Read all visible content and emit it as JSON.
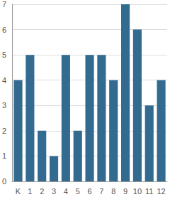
{
  "chart_data": {
    "type": "bar",
    "categories": [
      "K",
      "1",
      "2",
      "3",
      "4",
      "5",
      "6",
      "7",
      "8",
      "9",
      "10",
      "11",
      "12"
    ],
    "values": [
      4,
      5,
      2,
      1,
      5,
      2,
      5,
      5,
      4,
      7,
      6,
      3,
      4
    ],
    "color": "#336a90",
    "ylim": [
      0,
      7
    ],
    "yticks": [
      0,
      1,
      2,
      3,
      4,
      5,
      6,
      7
    ],
    "grid": true
  }
}
